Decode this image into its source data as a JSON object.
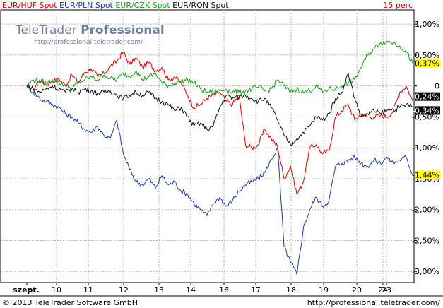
{
  "chart_data": {
    "type": "line",
    "interval": "15 perc",
    "watermark": {
      "brand": "TeleTrader",
      "product": "Professional",
      "url": "http://professional.teletrader.com/"
    },
    "x_ticks": [
      "szept.",
      "10",
      "11",
      "12",
      "13",
      "14",
      "16",
      "17",
      "18",
      "19",
      "20",
      "23",
      "24"
    ],
    "y_ticks": [
      1.0,
      0.5,
      0,
      -0.5,
      -1.0,
      -1.5,
      -2.0,
      -2.5,
      -3.0
    ],
    "y_tick_labels": [
      "1,00%",
      "0,50%",
      "0",
      "-0,50%",
      "-1,00%",
      "-1,50%",
      "-2,00%",
      "-2,50%",
      "-3,00%"
    ],
    "ylim": [
      -3.18,
      1.23
    ],
    "grid": true,
    "legend_position": "top-left",
    "series": [
      {
        "name": "EUR/HUF Spot",
        "color": "#e00000",
        "last_label": "-0,24%",
        "last_value": -0.24,
        "points": [
          [
            0,
            0
          ],
          [
            1,
            -0.05
          ],
          [
            2,
            0.1
          ],
          [
            3,
            0.02
          ],
          [
            4,
            0.08
          ],
          [
            5,
            0.12
          ],
          [
            6,
            0.0
          ],
          [
            7,
            0.18
          ],
          [
            8,
            0.05
          ],
          [
            9,
            0.22
          ],
          [
            10,
            0.28
          ],
          [
            11,
            0.15
          ],
          [
            12,
            0.2
          ],
          [
            13,
            0.32
          ],
          [
            14,
            0.4
          ],
          [
            15,
            0.55
          ],
          [
            16,
            0.35
          ],
          [
            17,
            0.45
          ],
          [
            18,
            0.3
          ],
          [
            19,
            0.38
          ],
          [
            20,
            0.25
          ],
          [
            21,
            0.3
          ],
          [
            22,
            0.1
          ],
          [
            23,
            0.15
          ],
          [
            24,
            0.05
          ],
          [
            25,
            -0.15
          ],
          [
            26,
            -0.35
          ],
          [
            27,
            -0.3
          ],
          [
            28,
            -0.2
          ],
          [
            29,
            -0.15
          ],
          [
            30,
            -0.1
          ],
          [
            31,
            -0.25
          ],
          [
            32,
            -0.3
          ],
          [
            33,
            -0.15
          ],
          [
            34,
            -0.95
          ],
          [
            35,
            -1.0
          ],
          [
            36,
            -0.95
          ],
          [
            37,
            -0.7
          ],
          [
            38,
            -0.85
          ],
          [
            39,
            -0.98
          ],
          [
            40,
            -1.5
          ],
          [
            41,
            -1.3
          ],
          [
            42,
            -1.75
          ],
          [
            43,
            -1.55
          ],
          [
            44,
            -1.0
          ],
          [
            45,
            -0.95
          ],
          [
            46,
            -1.1
          ],
          [
            47,
            -1.05
          ],
          [
            48,
            -0.5
          ],
          [
            49,
            -0.4
          ],
          [
            50,
            -0.3
          ],
          [
            51,
            -0.55
          ],
          [
            52,
            -0.45
          ],
          [
            53,
            -0.5
          ],
          [
            54,
            -0.5
          ],
          [
            55,
            -0.48
          ],
          [
            56,
            -0.5
          ],
          [
            57,
            -0.4
          ],
          [
            58,
            -0.1
          ],
          [
            59,
            0.0
          ],
          [
            60,
            -0.24
          ]
        ]
      },
      {
        "name": "EUR/PLN Spot",
        "color": "#1f3fa0",
        "last_label": "-1,44%",
        "last_value": -1.44,
        "points": [
          [
            0,
            0
          ],
          [
            1,
            -0.1
          ],
          [
            2,
            -0.2
          ],
          [
            3,
            -0.25
          ],
          [
            4,
            -0.3
          ],
          [
            5,
            -0.35
          ],
          [
            6,
            -0.45
          ],
          [
            7,
            -0.5
          ],
          [
            8,
            -0.6
          ],
          [
            9,
            -0.7
          ],
          [
            10,
            -0.75
          ],
          [
            11,
            -0.65
          ],
          [
            12,
            -0.8
          ],
          [
            13,
            -0.85
          ],
          [
            14,
            -0.55
          ],
          [
            15,
            -1.1
          ],
          [
            16,
            -1.35
          ],
          [
            17,
            -1.55
          ],
          [
            18,
            -1.6
          ],
          [
            19,
            -1.5
          ],
          [
            20,
            -1.65
          ],
          [
            21,
            -1.45
          ],
          [
            22,
            -1.6
          ],
          [
            23,
            -1.55
          ],
          [
            24,
            -1.7
          ],
          [
            25,
            -1.75
          ],
          [
            26,
            -1.9
          ],
          [
            27,
            -2.0
          ],
          [
            28,
            -2.1
          ],
          [
            29,
            -1.9
          ],
          [
            30,
            -1.8
          ],
          [
            31,
            -1.95
          ],
          [
            32,
            -1.85
          ],
          [
            33,
            -1.7
          ],
          [
            34,
            -1.6
          ],
          [
            35,
            -1.55
          ],
          [
            36,
            -1.5
          ],
          [
            37,
            -1.4
          ],
          [
            38,
            -1.2
          ],
          [
            39,
            -1.0
          ],
          [
            40,
            -2.6
          ],
          [
            41,
            -2.85
          ],
          [
            42,
            -3.05
          ],
          [
            43,
            -2.3
          ],
          [
            44,
            -2.0
          ],
          [
            45,
            -1.8
          ],
          [
            46,
            -1.95
          ],
          [
            47,
            -1.85
          ],
          [
            48,
            -1.3
          ],
          [
            49,
            -1.25
          ],
          [
            50,
            -1.2
          ],
          [
            51,
            -1.15
          ],
          [
            52,
            -1.25
          ],
          [
            53,
            -1.3
          ],
          [
            54,
            -1.2
          ],
          [
            55,
            -1.25
          ],
          [
            56,
            -1.15
          ],
          [
            57,
            -1.25
          ],
          [
            58,
            -1.2
          ],
          [
            59,
            -1.15
          ],
          [
            60,
            -1.44
          ]
        ]
      },
      {
        "name": "EUR/CZK Spot",
        "color": "#18a018",
        "last_label": "0,37%",
        "last_value": 0.37,
        "points": [
          [
            0,
            0
          ],
          [
            1,
            0.1
          ],
          [
            2,
            0.08
          ],
          [
            3,
            0.05
          ],
          [
            4,
            0.1
          ],
          [
            5,
            0.05
          ],
          [
            6,
            0.02
          ],
          [
            7,
            -0.05
          ],
          [
            8,
            0.05
          ],
          [
            9,
            0.1
          ],
          [
            10,
            0.15
          ],
          [
            11,
            0.1
          ],
          [
            12,
            0.18
          ],
          [
            13,
            0.12
          ],
          [
            14,
            0.1
          ],
          [
            15,
            0.2
          ],
          [
            16,
            0.15
          ],
          [
            17,
            0.25
          ],
          [
            18,
            0.1
          ],
          [
            19,
            0.15
          ],
          [
            20,
            0.2
          ],
          [
            21,
            0.05
          ],
          [
            22,
            0.0
          ],
          [
            23,
            0.05
          ],
          [
            24,
            0.08
          ],
          [
            25,
            0.1
          ],
          [
            26,
            0.05
          ],
          [
            27,
            -0.05
          ],
          [
            28,
            -0.1
          ],
          [
            29,
            -0.1
          ],
          [
            30,
            -0.08
          ],
          [
            31,
            -0.05
          ],
          [
            32,
            -0.1
          ],
          [
            33,
            -0.1
          ],
          [
            34,
            -0.08
          ],
          [
            35,
            -0.05
          ],
          [
            36,
            -0.02
          ],
          [
            37,
            -0.08
          ],
          [
            38,
            -0.05
          ],
          [
            39,
            0.1
          ],
          [
            40,
            0.0
          ],
          [
            41,
            -0.1
          ],
          [
            42,
            -0.05
          ],
          [
            43,
            -0.1
          ],
          [
            44,
            -0.08
          ],
          [
            45,
            0.0
          ],
          [
            46,
            -0.1
          ],
          [
            47,
            -0.05
          ],
          [
            48,
            -0.05
          ],
          [
            49,
            0.0
          ],
          [
            50,
            0.05
          ],
          [
            51,
            0.1
          ],
          [
            52,
            0.3
          ],
          [
            53,
            0.5
          ],
          [
            54,
            0.6
          ],
          [
            55,
            0.7
          ],
          [
            56,
            0.72
          ],
          [
            57,
            0.7
          ],
          [
            58,
            0.65
          ],
          [
            59,
            0.55
          ],
          [
            60,
            0.37
          ]
        ]
      },
      {
        "name": "EUR/RON Spot",
        "color": "#111111",
        "last_label": "-0,34%",
        "last_value": -0.34,
        "points": [
          [
            0,
            0
          ],
          [
            1,
            -0.05
          ],
          [
            2,
            -0.1
          ],
          [
            3,
            -0.05
          ],
          [
            4,
            0.0
          ],
          [
            5,
            -0.05
          ],
          [
            6,
            -0.1
          ],
          [
            7,
            -0.05
          ],
          [
            8,
            -0.1
          ],
          [
            9,
            -0.05
          ],
          [
            10,
            -0.08
          ],
          [
            11,
            -0.12
          ],
          [
            12,
            -0.1
          ],
          [
            13,
            -0.08
          ],
          [
            14,
            -0.15
          ],
          [
            15,
            -0.2
          ],
          [
            16,
            -0.15
          ],
          [
            17,
            -0.1
          ],
          [
            18,
            -0.15
          ],
          [
            19,
            -0.1
          ],
          [
            20,
            -0.2
          ],
          [
            21,
            -0.25
          ],
          [
            22,
            -0.3
          ],
          [
            23,
            -0.4
          ],
          [
            24,
            -0.35
          ],
          [
            25,
            -0.5
          ],
          [
            26,
            -0.65
          ],
          [
            27,
            -0.6
          ],
          [
            28,
            -0.7
          ],
          [
            29,
            -0.65
          ],
          [
            30,
            -0.35
          ],
          [
            31,
            -0.15
          ],
          [
            32,
            -0.2
          ],
          [
            33,
            -0.18
          ],
          [
            34,
            -0.15
          ],
          [
            35,
            -0.2
          ],
          [
            36,
            -0.25
          ],
          [
            37,
            -0.2
          ],
          [
            38,
            -0.35
          ],
          [
            39,
            -0.55
          ],
          [
            40,
            -0.8
          ],
          [
            41,
            -0.95
          ],
          [
            42,
            -0.85
          ],
          [
            43,
            -0.75
          ],
          [
            44,
            -0.65
          ],
          [
            45,
            -0.5
          ],
          [
            46,
            -0.55
          ],
          [
            47,
            -0.45
          ],
          [
            48,
            -0.2
          ],
          [
            49,
            -0.1
          ],
          [
            50,
            0.2
          ],
          [
            51,
            -0.2
          ],
          [
            52,
            -0.5
          ],
          [
            53,
            -0.45
          ],
          [
            54,
            -0.4
          ],
          [
            55,
            -0.45
          ],
          [
            56,
            -0.4
          ],
          [
            57,
            -0.38
          ],
          [
            58,
            -0.35
          ],
          [
            59,
            -0.3
          ],
          [
            60,
            -0.34
          ]
        ]
      }
    ]
  },
  "footer": {
    "copyright": "© 2013 TeleTrader Software GmbH",
    "url": "http://professional.teletrader.com/"
  }
}
